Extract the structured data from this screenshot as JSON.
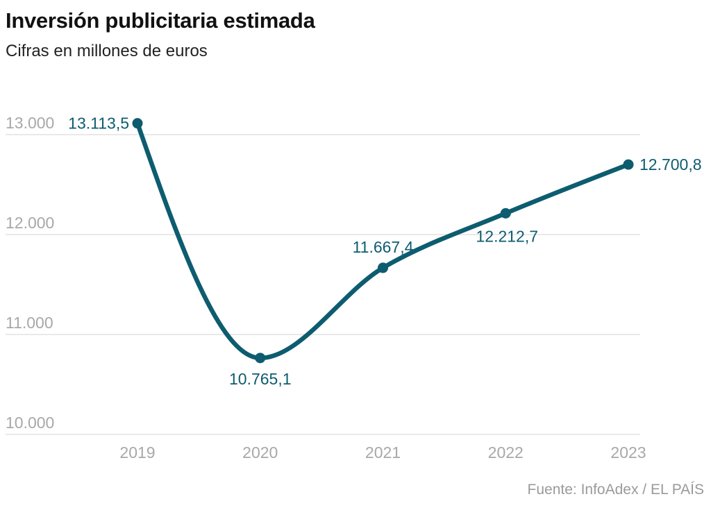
{
  "chart_data": {
    "type": "line",
    "title": "Inversión publicitaria estimada",
    "subtitle": "Cifras en millones de euros",
    "source": "Fuente: InfoAdex / EL PAÍS",
    "xlabel": "",
    "ylabel": "",
    "categories": [
      "2019",
      "2020",
      "2021",
      "2022",
      "2023"
    ],
    "series": [
      {
        "name": "Inversión publicitaria",
        "color": "#0d5c6f",
        "values": [
          13113.5,
          10765.1,
          11667.4,
          12212.7,
          12700.8
        ],
        "labels": [
          "13.113,5",
          "10.765,1",
          "11.667,4",
          "12.212,7",
          "12.700,8"
        ]
      }
    ],
    "yticks": [
      10000,
      11000,
      12000,
      13000
    ],
    "ytick_labels": [
      "10.000",
      "11.000",
      "12.000",
      "13.000"
    ],
    "ylim": [
      10000,
      13000
    ],
    "grid": true,
    "legend": "none",
    "curve": "smooth"
  }
}
